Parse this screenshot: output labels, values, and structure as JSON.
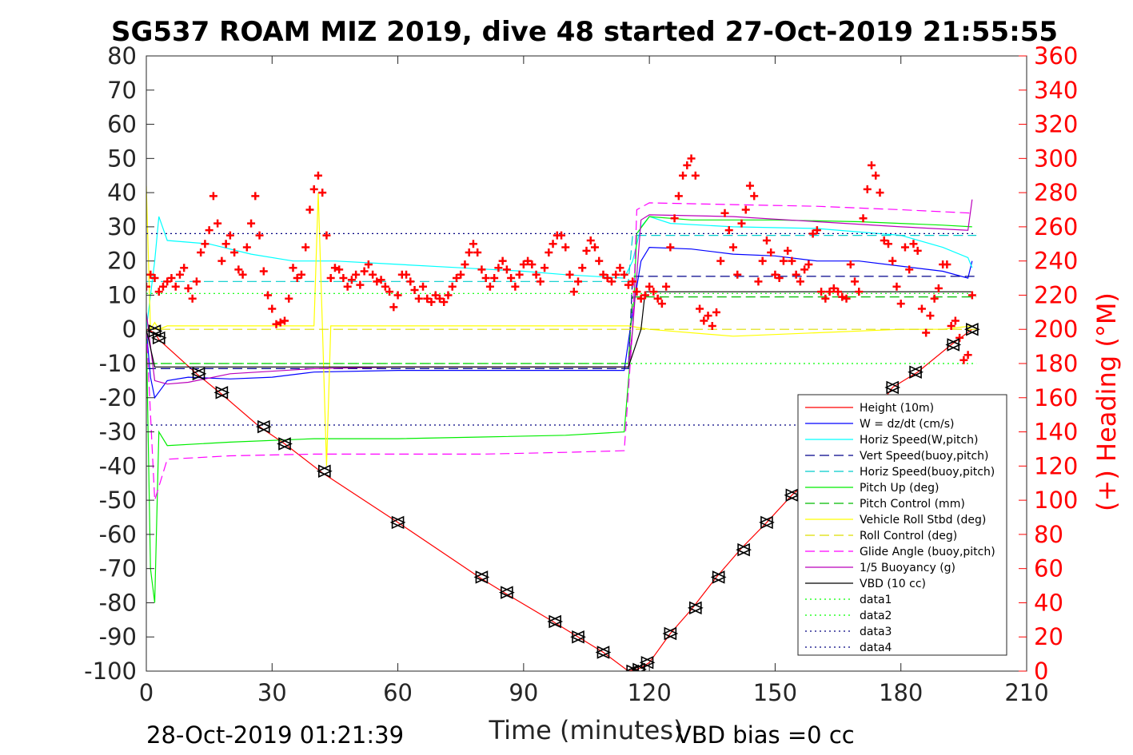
{
  "chart_data": {
    "type": "line",
    "title": "SG537 ROAM MIZ 2019, dive 48 started 27-Oct-2019 21:55:55",
    "xlabel": "Time (minutes)",
    "ylabel": "",
    "y2label": "(+) Heading (°M)",
    "footer_left": "28-Oct-2019 01:21:39",
    "footer_right": "VBD bias =0 cc",
    "xlim": [
      0,
      210
    ],
    "ylim": [
      -100,
      80
    ],
    "y2lim": [
      0,
      360
    ],
    "xticks": [
      "0",
      "30",
      "60",
      "90",
      "120",
      "150",
      "180",
      "210"
    ],
    "yticks": [
      "80",
      "70",
      "60",
      "50",
      "40",
      "30",
      "20",
      "10",
      "0",
      "-10",
      "-20",
      "-30",
      "-40",
      "-50",
      "-60",
      "-70",
      "-80",
      "-90",
      "-100"
    ],
    "y2ticks": [
      "360",
      "340",
      "320",
      "300",
      "280",
      "260",
      "240",
      "220",
      "200",
      "180",
      "160",
      "140",
      "120",
      "100",
      "80",
      "60",
      "40",
      "20",
      "0"
    ],
    "grid": false,
    "legend_position": "bottom-right",
    "series": [
      {
        "name": "Height (10m)",
        "color": "#ff0000",
        "style": "solid",
        "x": [
          0,
          2,
          3,
          12,
          18,
          27,
          33,
          42,
          60,
          80,
          86,
          97,
          103,
          109,
          115,
          117,
          118,
          120,
          125,
          130,
          136,
          142,
          148,
          154,
          160,
          170,
          178,
          184,
          192,
          197
        ],
        "y": [
          0,
          -1,
          -3,
          -13,
          -19,
          -28.5,
          -33.5,
          -42,
          -56.5,
          -73,
          -77.5,
          -85.5,
          -90,
          -94.5,
          -100,
          -99.5,
          -99,
          -97.5,
          -89,
          -82,
          -72.5,
          -64,
          -56.5,
          -48.5,
          -42,
          -31,
          -17,
          -12.5,
          -4.5,
          0
        ]
      },
      {
        "name": "W = dz/dt (cm/s)",
        "color": "#0000ff",
        "style": "solid",
        "x": [
          0,
          1,
          2,
          5,
          10,
          20,
          30,
          40,
          60,
          80,
          100,
          114,
          116,
          118,
          120,
          130,
          140,
          150,
          160,
          170,
          180,
          190,
          196,
          197
        ],
        "y": [
          0,
          -14,
          -20,
          -15,
          -14,
          -14.5,
          -14,
          -12.5,
          -12,
          -12,
          -12,
          -12,
          5,
          20,
          24,
          23.5,
          22,
          21.5,
          20,
          20,
          18.5,
          17,
          15,
          20
        ]
      },
      {
        "name": "Horiz Speed(W,pitch)",
        "color": "#00ffff",
        "style": "solid",
        "x": [
          0,
          2,
          3,
          5,
          15,
          25,
          35,
          45,
          60,
          75,
          90,
          100,
          114,
          116,
          118,
          120,
          125,
          140,
          160,
          180,
          190,
          196,
          197
        ],
        "y": [
          0,
          20,
          33,
          26,
          25,
          22,
          20,
          20,
          19,
          18,
          17,
          16,
          15,
          20,
          30,
          33,
          31,
          30,
          29.5,
          27.5,
          24,
          21,
          18
        ]
      },
      {
        "name": "Vert Speed(buoy,pitch)",
        "color": "#00008b",
        "style": "dashed",
        "x": [
          0,
          115,
          116,
          198
        ],
        "y": [
          -11.5,
          -11.5,
          15.5,
          15.5
        ]
      },
      {
        "name": "Horiz Speed(buoy,pitch)",
        "color": "#00cccc",
        "style": "dashed",
        "x": [
          0,
          115,
          116,
          198
        ],
        "y": [
          14,
          14,
          27.5,
          27.5
        ]
      },
      {
        "name": "Pitch Up (deg)",
        "color": "#00ee00",
        "style": "solid",
        "x": [
          0,
          1,
          2,
          3,
          5,
          20,
          40,
          60,
          80,
          100,
          114,
          116,
          117,
          120,
          130,
          150,
          170,
          190,
          197
        ],
        "y": [
          0,
          -70,
          -80,
          -30,
          -34,
          -33,
          -32,
          -32,
          -31.5,
          -31,
          -30,
          0,
          28,
          33,
          32,
          32,
          31.5,
          30.5,
          30
        ]
      },
      {
        "name": "Pitch Control (mm)",
        "color": "#00bb00",
        "style": "dashed",
        "x": [
          0,
          115,
          116,
          198
        ],
        "y": [
          -10,
          -10,
          9.5,
          9.5
        ]
      },
      {
        "name": "Vehicle Roll Stbd (deg)",
        "color": "#ffff00",
        "style": "solid",
        "x": [
          0,
          1,
          2,
          3,
          5,
          10,
          40,
          41,
          42,
          43,
          44,
          60,
          90,
          115,
          120,
          140,
          160,
          180,
          190,
          197
        ],
        "y": [
          42,
          0,
          2,
          0,
          1,
          1,
          1,
          40,
          1,
          -40,
          1,
          1,
          1,
          1,
          0,
          -2,
          -1,
          0,
          0,
          1
        ]
      },
      {
        "name": "Roll Control (deg)",
        "color": "#dddd00",
        "style": "dashed",
        "x": [
          0,
          198
        ],
        "y": [
          0,
          0
        ]
      },
      {
        "name": "Glide Angle (buoy,pitch)",
        "color": "#ff00ff",
        "style": "dashed",
        "x": [
          0,
          2,
          5,
          20,
          40,
          60,
          80,
          100,
          114,
          116,
          117,
          120,
          140,
          160,
          180,
          197
        ],
        "y": [
          0,
          -50,
          -38,
          -37,
          -36.5,
          -36.5,
          -36.5,
          -36,
          -35.5,
          0,
          35,
          37,
          36.5,
          36,
          35,
          34
        ]
      },
      {
        "name": "1/5 Buoyancy (g)",
        "color": "#bb00bb",
        "style": "solid",
        "x": [
          0,
          2,
          5,
          10,
          20,
          40,
          60,
          80,
          100,
          115,
          116,
          118,
          120,
          140,
          160,
          180,
          196,
          197
        ],
        "y": [
          5,
          -15,
          -16,
          -15.5,
          -13,
          -11.5,
          -11,
          -11,
          -11,
          -11,
          0,
          32,
          33.5,
          33,
          31.5,
          30,
          29,
          38
        ]
      },
      {
        "name": "VBD (10 cc)",
        "color": "#000000",
        "style": "solid",
        "x": [
          0,
          2,
          5,
          30,
          60,
          90,
          115,
          118,
          119,
          150,
          197
        ],
        "y": [
          0,
          -11,
          -11,
          -11,
          -11,
          -11,
          -11,
          0,
          11,
          11,
          11
        ]
      },
      {
        "name": "data1",
        "color": "#00ff00",
        "style": "dotted",
        "x": [
          0,
          198
        ],
        "y": [
          10.5,
          10.5
        ]
      },
      {
        "name": "data2",
        "color": "#00ff00",
        "style": "dotted",
        "x": [
          0,
          198
        ],
        "y": [
          -10,
          -10
        ]
      },
      {
        "name": "data3",
        "color": "#000080",
        "style": "dotted",
        "x": [
          0,
          198
        ],
        "y": [
          28,
          28
        ]
      },
      {
        "name": "data4",
        "color": "#000080",
        "style": "dotted",
        "x": [
          0,
          198
        ],
        "y": [
          -28,
          -28
        ]
      }
    ],
    "heading_points": {
      "name": "(+) Heading (°M)",
      "color": "#ff0000",
      "axis": "right",
      "x": [
        0,
        1,
        2,
        3,
        4,
        5,
        6,
        7,
        8,
        9,
        10,
        11,
        12,
        13,
        14,
        15,
        16,
        17,
        18,
        19,
        20,
        21,
        22,
        23,
        24,
        25,
        26,
        27,
        28,
        29,
        30,
        31,
        32,
        33,
        34,
        35,
        36,
        37,
        38,
        39,
        40,
        41,
        42,
        43,
        44,
        45,
        46,
        47,
        48,
        49,
        50,
        51,
        52,
        53,
        54,
        55,
        56,
        57,
        58,
        59,
        60,
        61,
        62,
        63,
        64,
        65,
        66,
        67,
        68,
        69,
        70,
        71,
        72,
        73,
        74,
        75,
        76,
        77,
        78,
        79,
        80,
        81,
        82,
        83,
        84,
        85,
        86,
        87,
        88,
        89,
        90,
        91,
        92,
        93,
        94,
        95,
        96,
        97,
        98,
        99,
        100,
        101,
        102,
        103,
        104,
        105,
        106,
        107,
        108,
        109,
        110,
        111,
        112,
        113,
        114,
        115,
        116,
        117,
        118,
        119,
        120,
        121,
        122,
        123,
        124,
        125,
        126,
        127,
        128,
        129,
        130,
        131,
        132,
        133,
        134,
        135,
        136,
        137,
        138,
        139,
        140,
        141,
        142,
        143,
        144,
        145,
        146,
        147,
        148,
        149,
        150,
        151,
        152,
        153,
        154,
        155,
        156,
        157,
        158,
        159,
        160,
        161,
        162,
        163,
        164,
        165,
        166,
        167,
        168,
        169,
        170,
        171,
        172,
        173,
        174,
        175,
        176,
        177,
        178,
        179,
        180,
        181,
        182,
        183,
        184,
        185,
        186,
        187,
        188,
        189,
        190,
        191,
        192,
        193,
        194,
        195,
        196,
        197
      ],
      "y": [
        225,
        232,
        230,
        222,
        225,
        228,
        230,
        225,
        232,
        236,
        224,
        218,
        228,
        245,
        250,
        258,
        278,
        262,
        240,
        250,
        255,
        245,
        235,
        232,
        248,
        262,
        278,
        255,
        234,
        220,
        212,
        203,
        204,
        205,
        218,
        236,
        230,
        232,
        248,
        270,
        282,
        290,
        280,
        255,
        230,
        236,
        235,
        230,
        225,
        229,
        232,
        226,
        234,
        238,
        232,
        228,
        229,
        225,
        222,
        213,
        220,
        232,
        232,
        228,
        223,
        218,
        225,
        218,
        216,
        220,
        218,
        216,
        220,
        225,
        230,
        232,
        238,
        245,
        250,
        245,
        235,
        230,
        225,
        230,
        236,
        240,
        235,
        230,
        225,
        232,
        238,
        240,
        238,
        232,
        228,
        236,
        245,
        250,
        255,
        255,
        248,
        232,
        222,
        228,
        236,
        246,
        252,
        248,
        240,
        232,
        230,
        228,
        232,
        236,
        232,
        226,
        228,
        222,
        218,
        220,
        225,
        222,
        218,
        215,
        225,
        248,
        265,
        278,
        290,
        296,
        300,
        290,
        212,
        205,
        208,
        202,
        210,
        240,
        268,
        258,
        248,
        232,
        262,
        270,
        284,
        278,
        228,
        240,
        252,
        245,
        232,
        230,
        240,
        246,
        240,
        232,
        228,
        235,
        238,
        256,
        258,
        222,
        218,
        222,
        224,
        222,
        219,
        218,
        238,
        228,
        222,
        265,
        282,
        296,
        290,
        280,
        252,
        250,
        240,
        225,
        215,
        248,
        235,
        250,
        246,
        212,
        198,
        208,
        218,
        224,
        238,
        238,
        202,
        205,
        195,
        182,
        185,
        220
      ]
    },
    "markers": {
      "name": "Height markers",
      "color": "#000000",
      "x": [
        2,
        3,
        12.5,
        18,
        28,
        33,
        42.5,
        60,
        80,
        86,
        97.5,
        103,
        109,
        116,
        117.5,
        119.5,
        125,
        131,
        136.5,
        142.5,
        148,
        154,
        178,
        183.5,
        192.5,
        197
      ],
      "y": [
        -0.5,
        -2.5,
        -13,
        -18.5,
        -28.5,
        -33.5,
        -41.5,
        -56.5,
        -72.5,
        -77,
        -85.5,
        -90,
        -94.5,
        -100,
        -99.5,
        -97.5,
        -89,
        -81.5,
        -72.5,
        -64.5,
        -56.5,
        -48.5,
        -17,
        -12.5,
        -4.5,
        0
      ]
    }
  }
}
